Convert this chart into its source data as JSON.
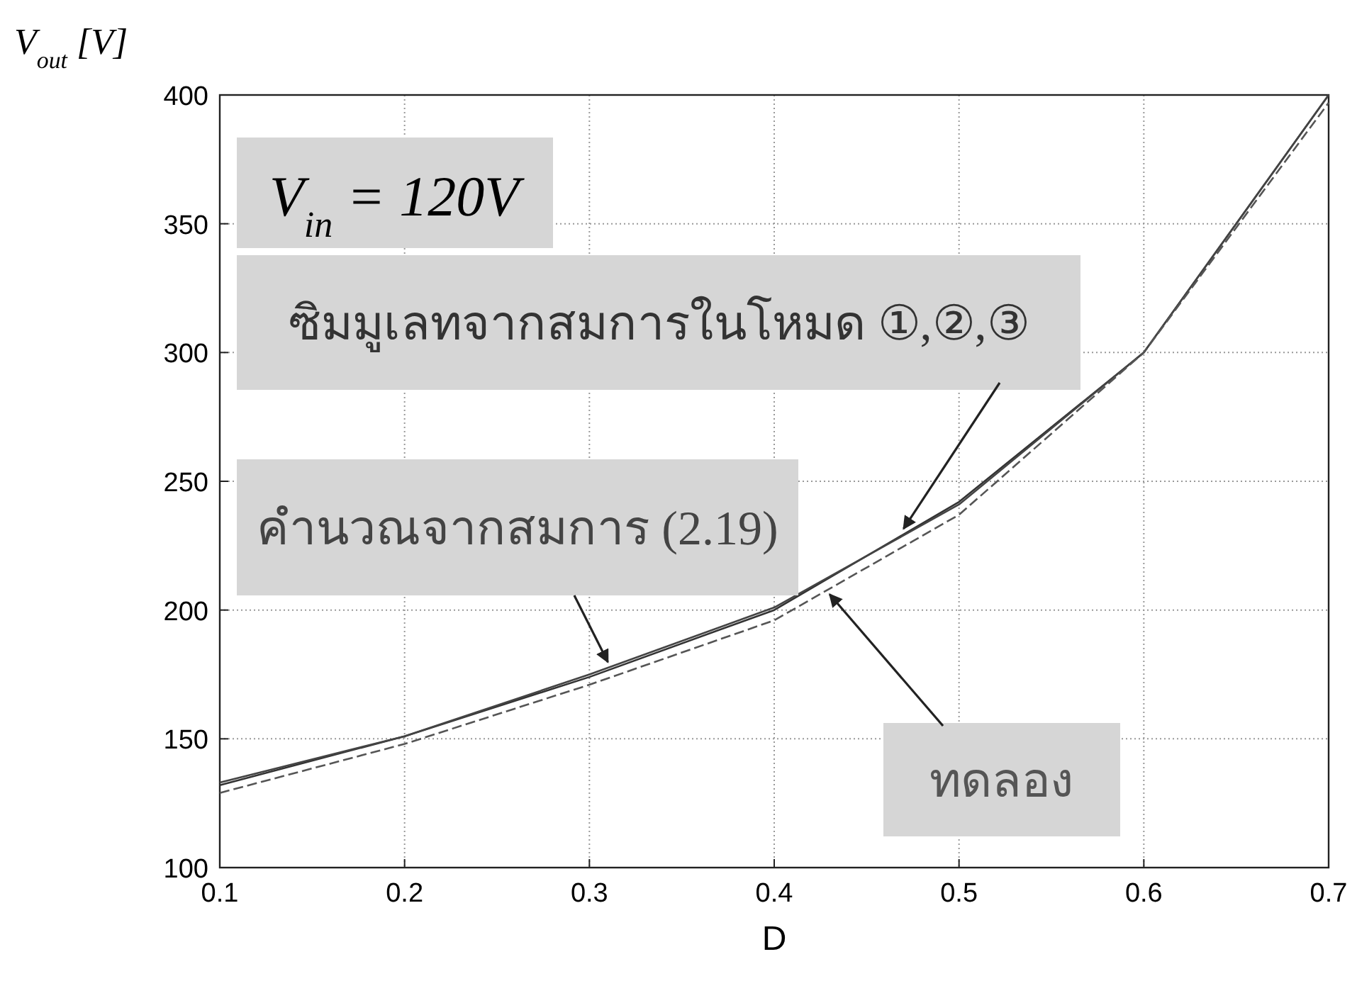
{
  "chart_data": {
    "type": "line",
    "xlabel": "D",
    "ylabel": "V$_{out}$ [V]",
    "annotations": [
      "V$_{in}$ = 120V"
    ],
    "x": [
      0.1,
      0.2,
      0.3,
      0.4,
      0.5,
      0.6,
      0.7
    ],
    "series": [
      {
        "name": "ซิมมูเลทจากสมการในโหมด ①,②,③",
        "color": "#333333",
        "line_style": "solid",
        "values": [
          132,
          151,
          174,
          200,
          242,
          300,
          400
        ]
      },
      {
        "name": "คำนวณจากสมการ (2.19)",
        "color": "#444444",
        "line_style": "solid",
        "values": [
          133,
          151,
          175,
          201,
          241,
          300,
          400
        ]
      },
      {
        "name": "ทดลอง",
        "color": "#555555",
        "line_style": "dashed",
        "values": [
          129,
          148,
          171,
          196,
          237,
          300,
          397
        ]
      }
    ],
    "xlim": [
      0.1,
      0.7
    ],
    "ylim": [
      100,
      400
    ],
    "xticks": [
      0.1,
      0.2,
      0.3,
      0.4,
      0.5,
      0.6,
      0.7
    ],
    "yticks": [
      100,
      150,
      200,
      250,
      300,
      350,
      400
    ],
    "grid": true,
    "marker": "none"
  }
}
